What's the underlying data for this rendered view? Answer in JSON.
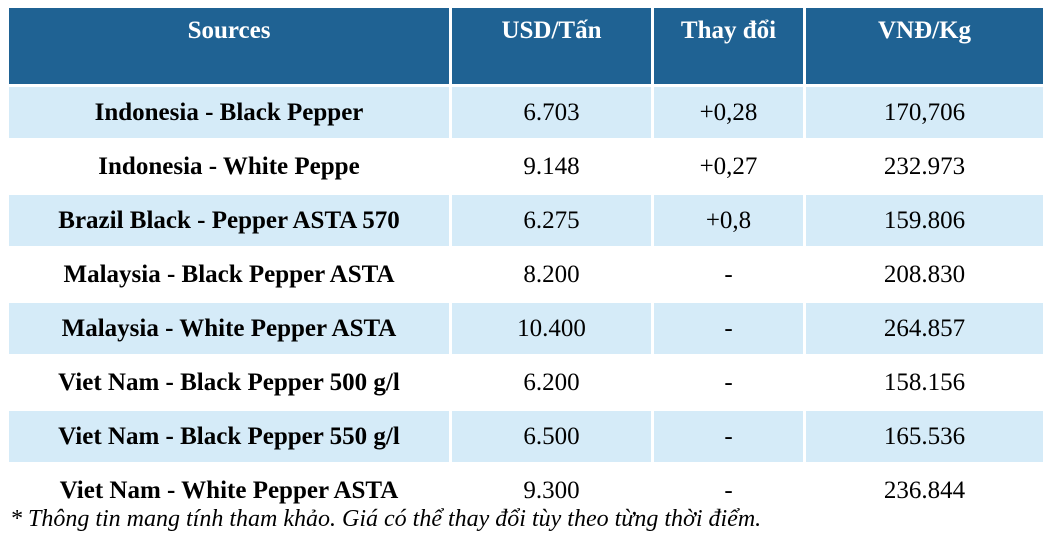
{
  "colors": {
    "header_bg": "#1F6293",
    "row_alt_bg": "#D5EBF8",
    "row_plain_bg": "#FFFFFF",
    "grid_line": "#FFFFFF"
  },
  "table": {
    "headers": [
      "Sources",
      "USD/Tấn",
      "Thay đổi",
      "VNĐ/Kg"
    ],
    "rows": [
      {
        "source": "Indonesia - Black Pepper",
        "usd": "6.703",
        "change": "+0,28",
        "vnd": "170,706"
      },
      {
        "source": "Indonesia - White Peppe",
        "usd": "9.148",
        "change": "+0,27",
        "vnd": "232.973"
      },
      {
        "source": "Brazil Black - Pepper ASTA 570",
        "usd": "6.275",
        "change": "+0,8",
        "vnd": "159.806"
      },
      {
        "source": "Malaysia - Black Pepper ASTA",
        "usd": "8.200",
        "change": "-",
        "vnd": "208.830"
      },
      {
        "source": "Malaysia - White Pepper ASTA",
        "usd": "10.400",
        "change": "-",
        "vnd": "264.857"
      },
      {
        "source": "Viet Nam - Black Pepper 500 g/l",
        "usd": "6.200",
        "change": "-",
        "vnd": "158.156"
      },
      {
        "source": "Viet Nam - Black Pepper 550 g/l",
        "usd": "6.500",
        "change": "-",
        "vnd": "165.536"
      },
      {
        "source": "Viet Nam - White Pepper ASTA",
        "usd": "9.300",
        "change": "-",
        "vnd": "236.844"
      }
    ]
  },
  "footnote": "* Thông tin mang tính tham khảo. Giá có thể thay đổi tùy theo từng thời điểm."
}
